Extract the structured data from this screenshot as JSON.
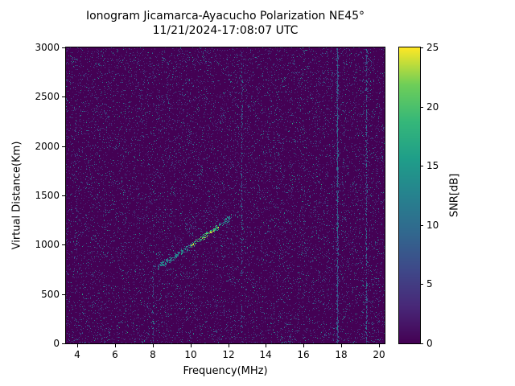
{
  "chart_data": {
    "type": "heatmap",
    "title": "Ionogram Jicamarca-Ayacucho Polarization NE45°",
    "subtitle": "11/21/2024-17:08:07 UTC",
    "xlabel": "Frequency(MHz)",
    "ylabel": "Virtual Distance(Km)",
    "xlim": [
      3.4,
      20.3
    ],
    "ylim": [
      0,
      3000
    ],
    "xticks": [
      4,
      6,
      8,
      10,
      12,
      14,
      16,
      18,
      20
    ],
    "yticks": [
      0,
      500,
      1000,
      1500,
      2000,
      2500,
      3000
    ],
    "grid": false,
    "colorbar": {
      "label": "SNR[dB]",
      "min": 0,
      "max": 25,
      "ticks": [
        0,
        5,
        10,
        15,
        20,
        25
      ],
      "colormap": "viridis",
      "colors": [
        "#440154",
        "#482878",
        "#3e4989",
        "#31688e",
        "#26828e",
        "#1f9e89",
        "#35b779",
        "#6ece58",
        "#fde725"
      ]
    },
    "background_noise": {
      "description": "dense speckled receiver noise over 0 dB dark-purple background",
      "snr_db_range": [
        0,
        18
      ]
    },
    "echo_trace": {
      "description": "oblique ionospheric echo trace rising with frequency",
      "freq_mhz": [
        8.2,
        12.1
      ],
      "virtual_km": [
        780,
        1280
      ],
      "snr_db_range": [
        8,
        25
      ],
      "brightest_freq_mhz": [
        10.0,
        11.5
      ]
    },
    "interference_stripes": [
      {
        "freq_mhz": 8.0,
        "km_range": [
          0,
          800
        ],
        "strength": "faint"
      },
      {
        "freq_mhz": 12.7,
        "km_range": [
          0,
          3000
        ],
        "strength": "faint"
      },
      {
        "freq_mhz": 17.8,
        "km_range": [
          0,
          3000
        ],
        "strength": "strong"
      },
      {
        "freq_mhz": 19.3,
        "km_range": [
          0,
          3000
        ],
        "strength": "medium"
      }
    ],
    "noise_seed": 20241121
  }
}
